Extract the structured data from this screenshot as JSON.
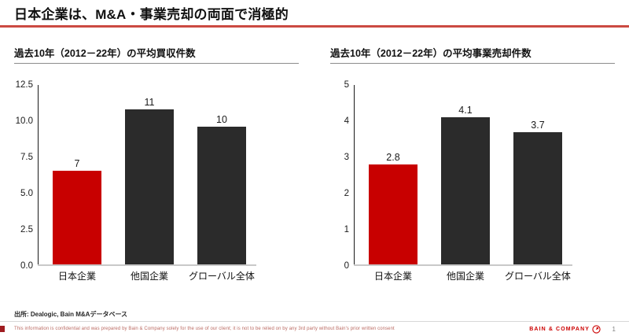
{
  "slide": {
    "title": "日本企業は、M&A・事業売却の両面で消極的",
    "source": "出所: Dealogic, Bain M&Aデータベース",
    "footer": {
      "disclaimer": "This information is confidential and was prepared by Bain & Company solely for the use of our client; it is not to be relied on by any 3rd party without Bain's prior written consent",
      "brand": "BAIN & COMPANY",
      "page_number": "1"
    },
    "colors": {
      "accent_red": "#c80000",
      "bar_dark": "#2b2b2b",
      "title_rule_red": "#cb4a42",
      "axis_line": "#1a1a1a",
      "baseline_gray": "#c9c9c9",
      "footer_text_red": "#bb6b63",
      "brand_red": "#cc0000"
    }
  },
  "chart_data": [
    {
      "type": "bar",
      "title": "過去10年（2012－22年）の平均買収件数",
      "categories": [
        "日本企業",
        "他国企業",
        "グローバル全体"
      ],
      "values": [
        "7",
        "11",
        "10"
      ],
      "plotted_values": [
        6.6,
        10.8,
        9.6
      ],
      "bar_colors": [
        "#c80000",
        "#2b2b2b",
        "#2b2b2b"
      ],
      "ylim": [
        0,
        12.5
      ],
      "yticks": [
        "0.0",
        "2.5",
        "5.0",
        "7.5",
        "10.0",
        "12.5"
      ],
      "grid": false,
      "legend": "none"
    },
    {
      "type": "bar",
      "title": "過去10年（2012－22年）の平均事業売却件数",
      "categories": [
        "日本企業",
        "他国企業",
        "グローバル全体"
      ],
      "values": [
        "2.8",
        "4.1",
        "3.7"
      ],
      "plotted_values": [
        2.8,
        4.1,
        3.7
      ],
      "bar_colors": [
        "#c80000",
        "#2b2b2b",
        "#2b2b2b"
      ],
      "ylim": [
        0,
        5
      ],
      "yticks": [
        "0",
        "1",
        "2",
        "3",
        "4",
        "5"
      ],
      "grid": false,
      "legend": "none"
    }
  ]
}
